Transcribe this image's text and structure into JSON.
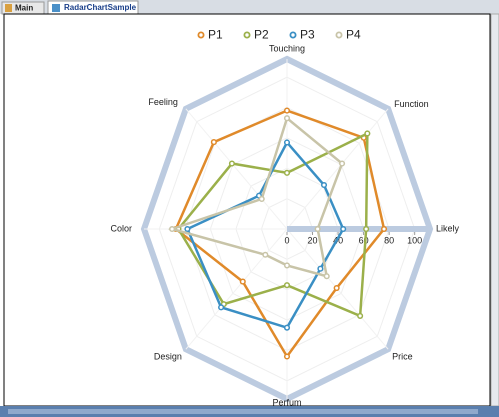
{
  "tabs": [
    "Main",
    "RadarChartSample"
  ],
  "chart_data": {
    "type": "radar",
    "categories": [
      "Touching",
      "Function",
      "Likely",
      "Price",
      "Perfum",
      "Design",
      "Color",
      "Feeling"
    ],
    "series": [
      {
        "name": "P1",
        "color": "#e08a2a",
        "values": [
          78,
          85,
          76,
          55,
          84,
          49,
          87,
          81
        ]
      },
      {
        "name": "P2",
        "color": "#9bb04a",
        "values": [
          37,
          89,
          62,
          81,
          37,
          70,
          85,
          61
        ]
      },
      {
        "name": "P3",
        "color": "#3a8fc4",
        "values": [
          57,
          41,
          44,
          37,
          65,
          73,
          78,
          31
        ]
      },
      {
        "name": "P4",
        "color": "#c8c4a8",
        "values": [
          73,
          61,
          24,
          44,
          24,
          24,
          90,
          28
        ]
      }
    ],
    "rlim": [
      0,
      112
    ],
    "rticks": [
      0,
      20,
      40,
      60,
      80,
      100
    ],
    "grid": true,
    "legend": "top"
  }
}
